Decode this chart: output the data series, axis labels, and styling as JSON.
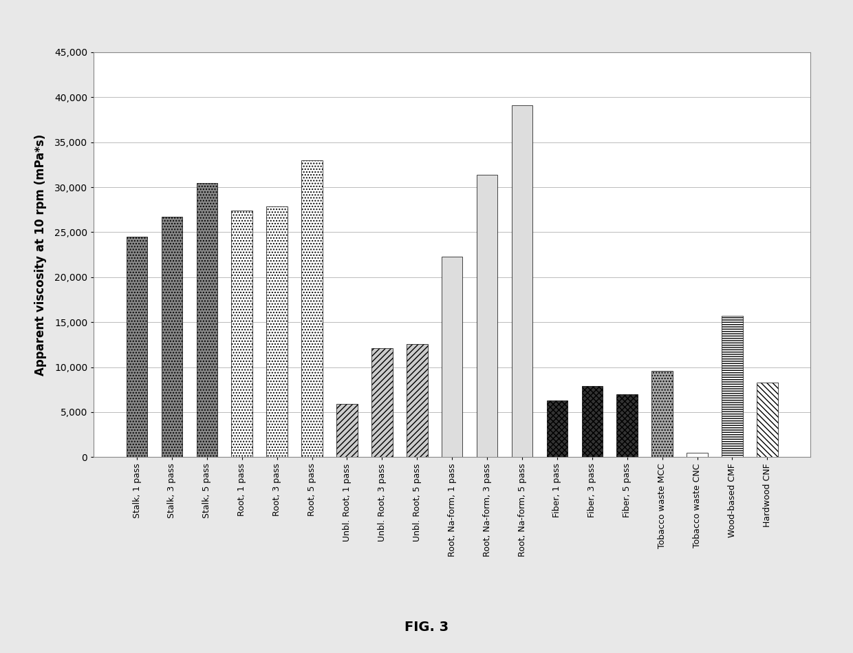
{
  "categories": [
    "Stalk, 1 pass",
    "Stalk, 3 pass",
    "Stalk, 5 pass",
    "Root, 1 pass",
    "Root, 3 pass",
    "Root, 5 pass",
    "Unbl. Root, 1 pass",
    "Unbl. Root, 3 pass",
    "Unbl. Root, 5 pass",
    "Root, Na-form, 1 pass",
    "Root, Na-form, 3 pass",
    "Root, Na-form, 5 pass",
    "Fiber, 1 pass",
    "Fiber, 3 pass",
    "Fiber, 5 pass",
    "Tobacco waste MCC",
    "Tobacco waste CNC",
    "Wood-based CMF",
    "Hardwood CNF"
  ],
  "values": [
    24500,
    26700,
    30500,
    27400,
    27900,
    33000,
    5900,
    12100,
    12600,
    22300,
    31400,
    39100,
    6300,
    7900,
    7000,
    9600,
    500,
    15700,
    8300
  ],
  "bar_styles": [
    {
      "fc": "#888888",
      "hatch": "....",
      "ec": "black",
      "lw": 0.5
    },
    {
      "fc": "#888888",
      "hatch": "....",
      "ec": "black",
      "lw": 0.5
    },
    {
      "fc": "#888888",
      "hatch": "....",
      "ec": "black",
      "lw": 0.5
    },
    {
      "fc": "#ffffff",
      "hatch": "....",
      "ec": "black",
      "lw": 0.5
    },
    {
      "fc": "#ffffff",
      "hatch": "....",
      "ec": "black",
      "lw": 0.5
    },
    {
      "fc": "#ffffff",
      "hatch": "....",
      "ec": "black",
      "lw": 0.5
    },
    {
      "fc": "#cccccc",
      "hatch": "////",
      "ec": "black",
      "lw": 0.5
    },
    {
      "fc": "#cccccc",
      "hatch": "////",
      "ec": "black",
      "lw": 0.5
    },
    {
      "fc": "#cccccc",
      "hatch": "////",
      "ec": "black",
      "lw": 0.5
    },
    {
      "fc": "#dddddd",
      "hatch": "vvvv",
      "ec": "black",
      "lw": 0.5
    },
    {
      "fc": "#dddddd",
      "hatch": "vvvv",
      "ec": "black",
      "lw": 0.5
    },
    {
      "fc": "#dddddd",
      "hatch": "vvvv",
      "ec": "black",
      "lw": 0.5
    },
    {
      "fc": "#333333",
      "hatch": "xxxx",
      "ec": "black",
      "lw": 0.5
    },
    {
      "fc": "#333333",
      "hatch": "xxxx",
      "ec": "black",
      "lw": 0.5
    },
    {
      "fc": "#333333",
      "hatch": "xxxx",
      "ec": "black",
      "lw": 0.5
    },
    {
      "fc": "#aaaaaa",
      "hatch": "....",
      "ec": "black",
      "lw": 0.5
    },
    {
      "fc": "#ffffff",
      "hatch": "",
      "ec": "black",
      "lw": 0.5
    },
    {
      "fc": "#ffffff",
      "hatch": "-----",
      "ec": "black",
      "lw": 0.5
    },
    {
      "fc": "#ffffff",
      "hatch": "\\\\\\\\",
      "ec": "black",
      "lw": 0.5
    }
  ],
  "ylabel": "Apparent viscosity at 10 rpm (mPa*s)",
  "fig_label": "FIG. 3",
  "ylim": [
    0,
    45000
  ],
  "yticks": [
    0,
    5000,
    10000,
    15000,
    20000,
    25000,
    30000,
    35000,
    40000,
    45000
  ],
  "figure_bg": "#e8e8e8",
  "plot_bg": "#ffffff",
  "bar_width": 0.6
}
